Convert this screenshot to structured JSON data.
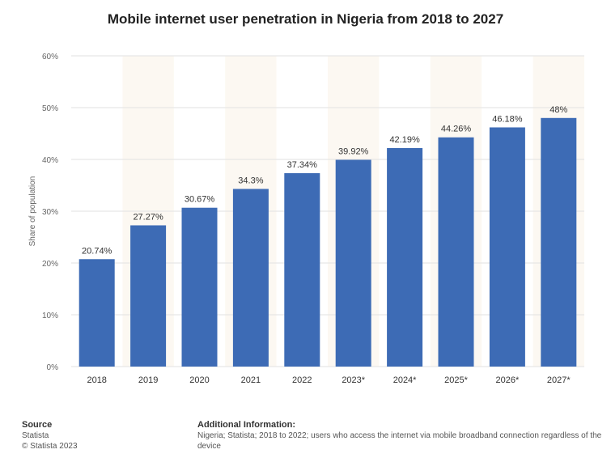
{
  "chart_data": {
    "type": "bar",
    "title": "Mobile internet user penetration in Nigeria from 2018 to 2027",
    "ylabel": "Share of population",
    "xlabel": "",
    "categories": [
      "2018",
      "2019",
      "2020",
      "2021",
      "2022",
      "2023*",
      "2024*",
      "2025*",
      "2026*",
      "2027*"
    ],
    "values": [
      20.74,
      27.27,
      30.67,
      34.3,
      37.34,
      39.92,
      42.19,
      44.26,
      46.18,
      48
    ],
    "value_labels": [
      "20.74%",
      "27.27%",
      "30.67%",
      "34.3%",
      "37.34%",
      "39.92%",
      "42.19%",
      "44.26%",
      "46.18%",
      "48%"
    ],
    "ylim": [
      0,
      60
    ],
    "yticks": [
      "0%",
      "10%",
      "20%",
      "30%",
      "40%",
      "50%",
      "60%"
    ],
    "grid": true,
    "bar_color": "#3d6bb5"
  },
  "footer": {
    "source_heading": "Source",
    "source_name": "Statista",
    "copyright": "© Statista 2023",
    "additional_heading": "Additional Information:",
    "additional_text": "Nigeria; Statista; 2018 to 2022; users who access the internet via mobile broadband connection regardless of the device"
  }
}
